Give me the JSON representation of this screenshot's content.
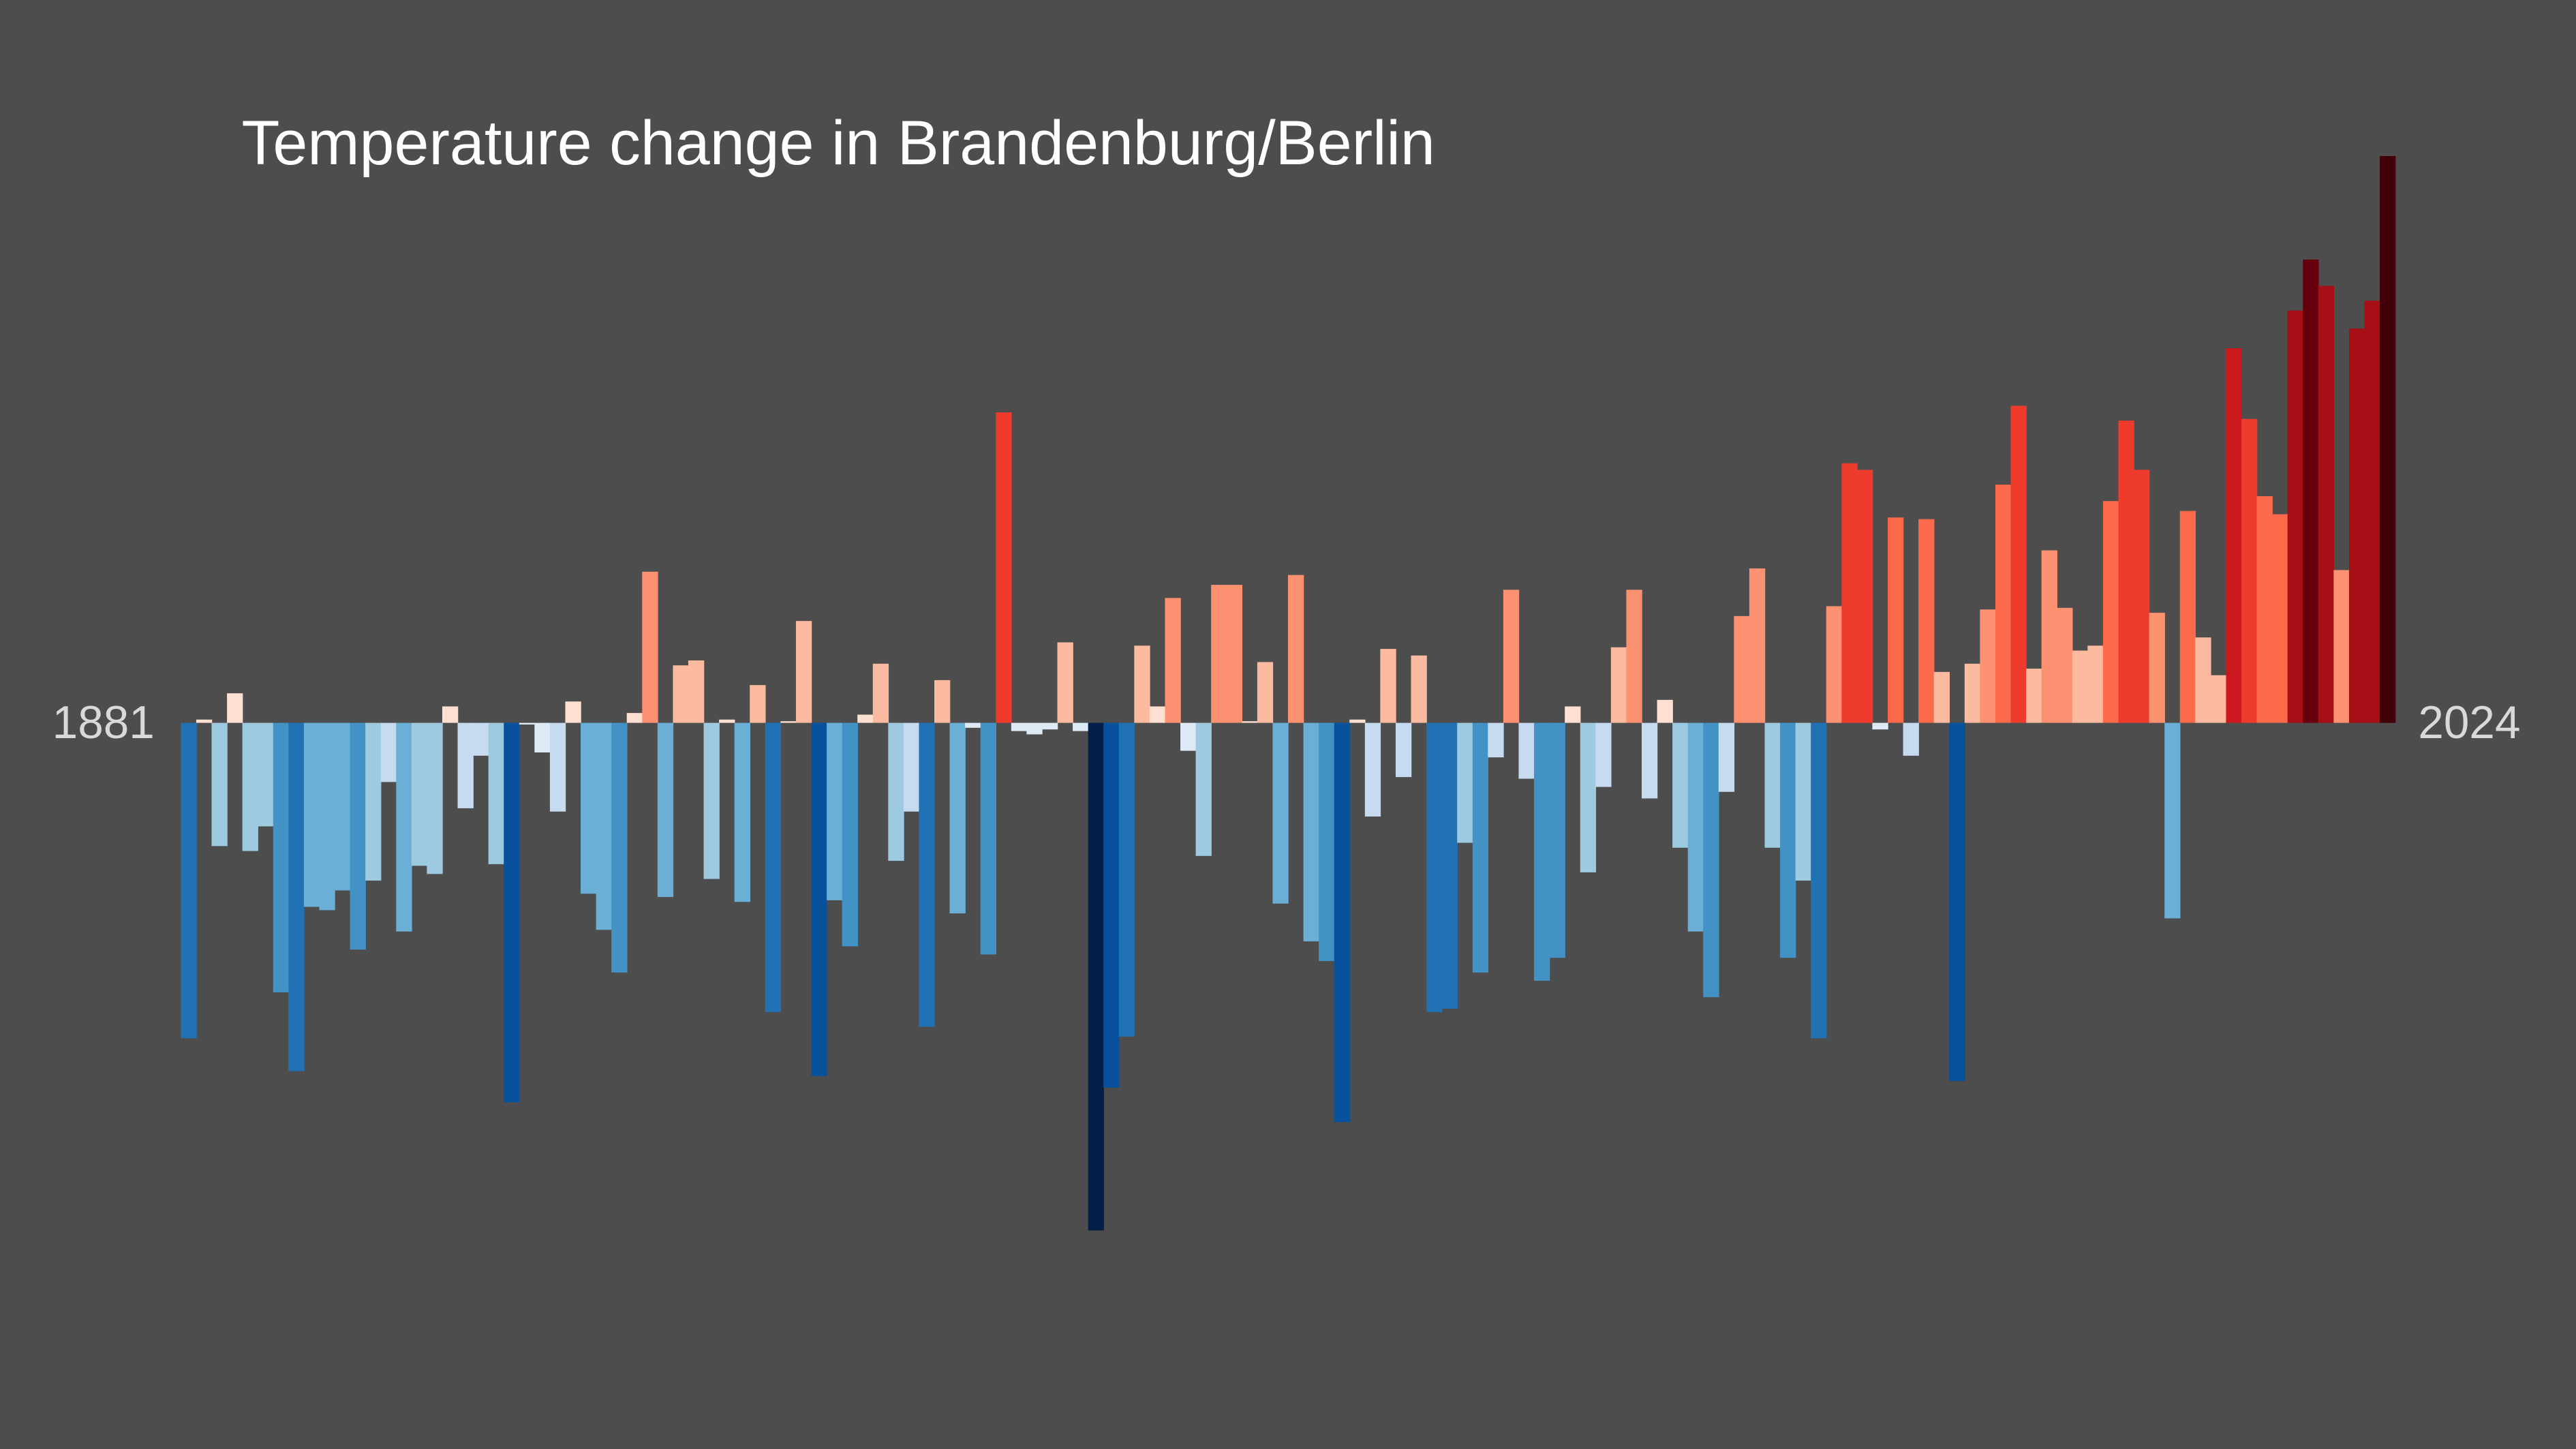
{
  "chart_data": {
    "type": "bar",
    "title": "Temperature change in Brandenburg/Berlin",
    "categories": [
      "1881",
      null,
      null,
      null,
      null,
      null,
      null,
      null,
      null,
      null,
      null,
      null,
      null,
      null,
      null,
      null,
      null,
      null,
      null,
      null,
      null,
      null,
      null,
      null,
      null,
      null,
      null,
      null,
      null,
      null,
      null,
      null,
      null,
      null,
      null,
      null,
      null,
      null,
      null,
      null,
      null,
      null,
      null,
      null,
      null,
      null,
      null,
      null,
      null,
      null,
      null,
      null,
      null,
      null,
      null,
      null,
      null,
      null,
      null,
      null,
      null,
      null,
      null,
      null,
      null,
      null,
      null,
      null,
      null,
      null,
      null,
      null,
      null,
      null,
      null,
      null,
      null,
      null,
      null,
      null,
      null,
      null,
      null,
      null,
      null,
      null,
      null,
      null,
      null,
      null,
      null,
      null,
      null,
      null,
      null,
      null,
      null,
      null,
      null,
      null,
      null,
      null,
      null,
      null,
      null,
      null,
      null,
      null,
      null,
      null,
      null,
      null,
      null,
      null,
      null,
      null,
      null,
      null,
      null,
      null,
      null,
      null,
      null,
      null,
      null,
      null,
      null,
      null,
      null,
      null,
      null,
      null,
      null,
      null,
      null,
      null,
      null,
      null,
      null,
      null,
      null,
      null,
      null,
      "2024"
    ],
    "values": [
      -1.92,
      0.02,
      -0.75,
      0.18,
      -0.78,
      -0.63,
      -1.64,
      -2.12,
      -1.12,
      -1.14,
      -1.02,
      -1.38,
      -0.96,
      -0.36,
      -1.27,
      -0.87,
      -0.92,
      0.1,
      -0.52,
      -0.2,
      -0.86,
      -2.31,
      -0.01,
      -0.18,
      -0.54,
      0.13,
      -1.04,
      -1.26,
      -1.52,
      0.06,
      0.92,
      -1.06,
      0.35,
      0.38,
      -0.95,
      0.02,
      -1.09,
      0.23,
      -1.76,
      0.01,
      0.62,
      -2.15,
      -1.08,
      -1.36,
      0.05,
      0.36,
      -0.84,
      -0.54,
      -1.85,
      0.26,
      -1.16,
      -0.03,
      -1.41,
      1.89,
      -0.05,
      -0.07,
      -0.04,
      0.49,
      -0.05,
      -3.09,
      -2.22,
      -1.91,
      0.47,
      0.1,
      0.76,
      -0.17,
      -0.81,
      0.84,
      0.84,
      0.01,
      0.37,
      -1.1,
      0.9,
      -1.33,
      -1.45,
      -2.43,
      0.02,
      -0.57,
      0.45,
      -0.33,
      0.41,
      -1.76,
      -1.74,
      -0.73,
      -1.52,
      -0.21,
      0.81,
      -0.34,
      -1.57,
      -1.43,
      0.1,
      -0.91,
      -0.39,
      0.46,
      0.81,
      -0.46,
      0.14,
      -0.76,
      -1.27,
      -1.67,
      -0.42,
      0.65,
      0.94,
      -0.76,
      -1.43,
      -0.96,
      -1.92,
      0.71,
      1.58,
      1.54,
      -0.04,
      1.25,
      -0.2,
      1.24,
      0.31,
      -2.18,
      0.36,
      0.69,
      1.45,
      1.93,
      0.33,
      1.05,
      0.7,
      0.44,
      0.47,
      1.35,
      1.84,
      1.54,
      0.67,
      -1.19,
      1.29,
      0.52,
      0.29,
      2.28,
      1.85,
      1.38,
      1.27,
      2.51,
      2.82,
      2.66,
      0.93,
      2.4,
      2.57,
      3.45
    ],
    "ylim": [
      -4.42,
      3.45
    ],
    "cold_colors": [
      "#deebf7",
      "#c6dbef",
      "#9ecae1",
      "#6baed6",
      "#4292c6",
      "#2171b5",
      "#08519c",
      "#08306b",
      "#041f4a"
    ],
    "warm_colors": [
      "#fee0d2",
      "#fcbba1",
      "#fc9272",
      "#fb6a4a",
      "#ef3b2c",
      "#cb181d",
      "#a50f15",
      "#67000d",
      "#3f0008"
    ]
  }
}
